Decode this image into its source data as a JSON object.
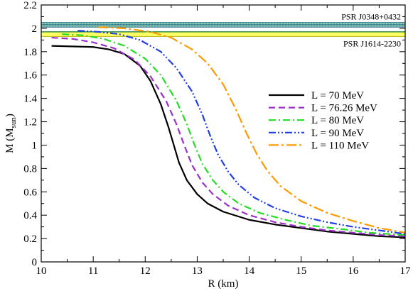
{
  "chart_data": {
    "type": "line",
    "xlabel": "R (km)",
    "ylabel": {
      "main": "M (M",
      "sub": "sun",
      "close": ")"
    },
    "xlim": [
      10,
      17
    ],
    "ylim": [
      0,
      2.2
    ],
    "xticks": [
      10,
      11,
      12,
      13,
      14,
      15,
      16,
      17
    ],
    "yticks": [
      0,
      0.2,
      0.4,
      0.6,
      0.8,
      1,
      1.2,
      1.4,
      1.6,
      1.8,
      2,
      2.2
    ],
    "x_minor_step": 0.5,
    "y_minor_step": 0.1,
    "grid": false,
    "legend_position": "center-right",
    "bands": [
      {
        "name": "PSR J0348+0432",
        "range": [
          2.01,
          2.05
        ],
        "fill": "#8fd3b0",
        "edge": "#2f6f8f",
        "central": 2.03,
        "label_position": "above"
      },
      {
        "name": "PSR J1614-2230",
        "range": [
          1.93,
          1.97
        ],
        "fill": "#ffff66",
        "edge": "#b5b500",
        "central": 1.97,
        "label_position": "below"
      }
    ],
    "series": [
      {
        "name": "L = 70 MeV",
        "color": "#000000",
        "dash": "solid",
        "points": [
          [
            10.2,
            1.85
          ],
          [
            11.0,
            1.84
          ],
          [
            11.3,
            1.82
          ],
          [
            11.6,
            1.78
          ],
          [
            11.9,
            1.68
          ],
          [
            12.1,
            1.55
          ],
          [
            12.3,
            1.35
          ],
          [
            12.45,
            1.15
          ],
          [
            12.55,
            1.0
          ],
          [
            12.65,
            0.85
          ],
          [
            12.8,
            0.7
          ],
          [
            13.0,
            0.58
          ],
          [
            13.2,
            0.5
          ],
          [
            13.5,
            0.43
          ],
          [
            14.0,
            0.36
          ],
          [
            14.5,
            0.32
          ],
          [
            15.0,
            0.29
          ],
          [
            15.5,
            0.26
          ],
          [
            16.0,
            0.24
          ],
          [
            16.5,
            0.22
          ],
          [
            17.0,
            0.21
          ]
        ]
      },
      {
        "name": "L = 76.26 MeV",
        "color": "#9b2fc9",
        "dash": "dashed",
        "points": [
          [
            10.2,
            1.92
          ],
          [
            10.6,
            1.91
          ],
          [
            11.0,
            1.88
          ],
          [
            11.4,
            1.83
          ],
          [
            11.8,
            1.73
          ],
          [
            12.1,
            1.59
          ],
          [
            12.4,
            1.38
          ],
          [
            12.6,
            1.18
          ],
          [
            12.75,
            1.0
          ],
          [
            12.9,
            0.83
          ],
          [
            13.1,
            0.68
          ],
          [
            13.3,
            0.58
          ],
          [
            13.6,
            0.48
          ],
          [
            14.0,
            0.4
          ],
          [
            14.5,
            0.34
          ],
          [
            15.0,
            0.3
          ],
          [
            15.5,
            0.27
          ],
          [
            16.0,
            0.25
          ],
          [
            16.5,
            0.23
          ],
          [
            17.0,
            0.22
          ]
        ]
      },
      {
        "name": "L = 80 MeV",
        "color": "#22dd22",
        "dash": "dashdot",
        "points": [
          [
            10.4,
            1.95
          ],
          [
            10.8,
            1.94
          ],
          [
            11.2,
            1.91
          ],
          [
            11.6,
            1.85
          ],
          [
            12.0,
            1.74
          ],
          [
            12.3,
            1.6
          ],
          [
            12.6,
            1.38
          ],
          [
            12.8,
            1.18
          ],
          [
            12.95,
            1.0
          ],
          [
            13.1,
            0.84
          ],
          [
            13.3,
            0.7
          ],
          [
            13.5,
            0.6
          ],
          [
            13.8,
            0.5
          ],
          [
            14.2,
            0.42
          ],
          [
            14.7,
            0.36
          ],
          [
            15.2,
            0.31
          ],
          [
            15.8,
            0.28
          ],
          [
            16.3,
            0.25
          ],
          [
            17.0,
            0.23
          ]
        ]
      },
      {
        "name": "L = 90 MeV",
        "color": "#1f3fe6",
        "dash": "dashdotdot",
        "points": [
          [
            10.7,
            1.98
          ],
          [
            11.1,
            1.97
          ],
          [
            11.5,
            1.95
          ],
          [
            11.9,
            1.9
          ],
          [
            12.3,
            1.8
          ],
          [
            12.6,
            1.66
          ],
          [
            12.9,
            1.46
          ],
          [
            13.1,
            1.26
          ],
          [
            13.25,
            1.08
          ],
          [
            13.4,
            0.92
          ],
          [
            13.6,
            0.77
          ],
          [
            13.8,
            0.66
          ],
          [
            14.1,
            0.55
          ],
          [
            14.5,
            0.46
          ],
          [
            15.0,
            0.39
          ],
          [
            15.5,
            0.34
          ],
          [
            16.0,
            0.3
          ],
          [
            16.5,
            0.27
          ],
          [
            17.0,
            0.24
          ]
        ]
      },
      {
        "name": "L = 110 MeV",
        "color": "#ff9a00",
        "dash": "longdashdot",
        "points": [
          [
            11.1,
            2.01
          ],
          [
            11.6,
            2.0
          ],
          [
            12.1,
            1.97
          ],
          [
            12.5,
            1.92
          ],
          [
            12.9,
            1.82
          ],
          [
            13.2,
            1.7
          ],
          [
            13.5,
            1.52
          ],
          [
            13.75,
            1.3
          ],
          [
            13.95,
            1.1
          ],
          [
            14.15,
            0.92
          ],
          [
            14.35,
            0.78
          ],
          [
            14.6,
            0.65
          ],
          [
            15.0,
            0.52
          ],
          [
            15.5,
            0.42
          ],
          [
            16.0,
            0.35
          ],
          [
            16.5,
            0.29
          ],
          [
            17.0,
            0.25
          ]
        ]
      }
    ]
  }
}
